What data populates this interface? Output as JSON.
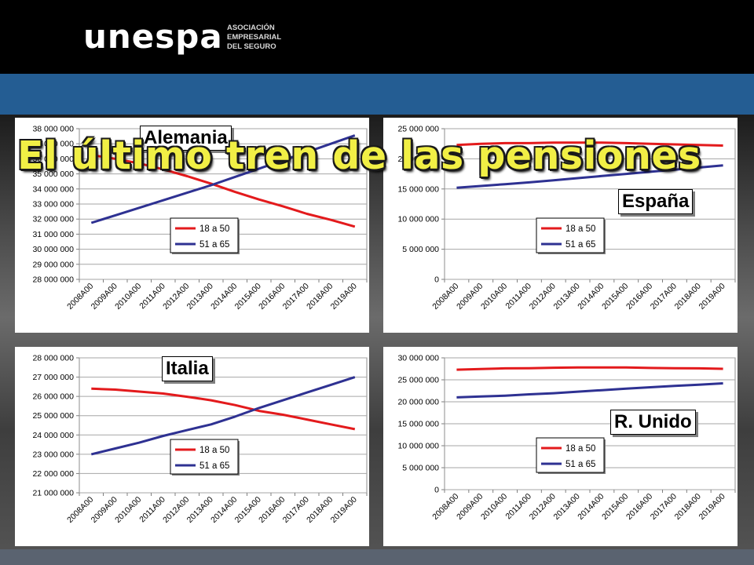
{
  "header": {
    "logo_text": "unespa",
    "logo_subtitle_lines": [
      "ASOCIACIÓN",
      "EMPRESARIAL",
      "DEL SEGURO"
    ]
  },
  "slide_title": "El último tren de las pensiones",
  "colors": {
    "series_18_50": "#e31a1c",
    "series_51_65": "#2e3192",
    "title_yellow": "#f1ef45",
    "band_blue": "#245d93"
  },
  "chart_data": [
    {
      "type": "line",
      "id": "alemania",
      "country_label": "Alemania",
      "categories": [
        "2008A00",
        "2009A00",
        "2010A00",
        "2011A00",
        "2012A00",
        "2013A00",
        "2014A00",
        "2015A00",
        "2016A00",
        "2017A00",
        "2018A00",
        "2019A00"
      ],
      "series": [
        {
          "name": "18 a 50",
          "values": [
            36250000,
            36000000,
            35700000,
            35300000,
            34850000,
            34350000,
            33800000,
            33300000,
            32850000,
            32350000,
            31950000,
            31500000
          ]
        },
        {
          "name": "51 a 65",
          "values": [
            31750000,
            32250000,
            32750000,
            33250000,
            33750000,
            34250000,
            34800000,
            35350000,
            35900000,
            36450000,
            37000000,
            37550000
          ]
        }
      ],
      "yticks": [
        "38 000 000",
        "37 000 000",
        "36 000 000",
        "35 000 000",
        "34 000 000",
        "33 000 000",
        "32 000 000",
        "31 000 000",
        "30 000 000",
        "29 000 000",
        "28 000 000"
      ],
      "ylim": [
        28000000,
        38000000
      ],
      "legend": "bottom-center"
    },
    {
      "type": "line",
      "id": "espana",
      "country_label": "España",
      "categories": [
        "2008A00",
        "2009A00",
        "2010A00",
        "2011A00",
        "2012A00",
        "2013A00",
        "2014A00",
        "2015A00",
        "2016A00",
        "2017A00",
        "2018A00",
        "2019A00"
      ],
      "series": [
        {
          "name": "18 a 50",
          "values": [
            22300000,
            22500000,
            22600000,
            22600000,
            22700000,
            22700000,
            22700000,
            22600000,
            22500000,
            22400000,
            22300000,
            22200000
          ]
        },
        {
          "name": "51 a 65",
          "values": [
            15200000,
            15500000,
            15800000,
            16100000,
            16450000,
            16800000,
            17150000,
            17500000,
            17850000,
            18200000,
            18550000,
            18900000
          ]
        }
      ],
      "yticks": [
        "25 000 000",
        "20 000 000",
        "15 000 000",
        "10 000 000",
        "5 000 000",
        "0"
      ],
      "ylim": [
        0,
        25000000
      ],
      "legend": "bottom-center"
    },
    {
      "type": "line",
      "id": "italia",
      "country_label": "Italia",
      "categories": [
        "2008A00",
        "2009A00",
        "2010A00",
        "2011A00",
        "2012A00",
        "2013A00",
        "2014A00",
        "2015A00",
        "2016A00",
        "2017A00",
        "2018A00",
        "2019A00"
      ],
      "series": [
        {
          "name": "18 a 50",
          "values": [
            26400000,
            26350000,
            26250000,
            26150000,
            25980000,
            25800000,
            25550000,
            25250000,
            25050000,
            24800000,
            24550000,
            24300000
          ]
        },
        {
          "name": "51 a 65",
          "values": [
            23000000,
            23300000,
            23600000,
            23950000,
            24250000,
            24550000,
            24950000,
            25400000,
            25800000,
            26200000,
            26600000,
            27000000
          ]
        }
      ],
      "yticks": [
        "28 000 000",
        "27 000 000",
        "26 000 000",
        "25 000 000",
        "24 000 000",
        "23 000 000",
        "22 000 000",
        "21 000 000"
      ],
      "ylim": [
        21000000,
        28000000
      ],
      "legend": "bottom-center"
    },
    {
      "type": "line",
      "id": "reino-unido",
      "country_label": "R. Unido",
      "categories": [
        "2008A00",
        "2009A00",
        "2010A00",
        "2011A00",
        "2012A00",
        "2013A00",
        "2014A00",
        "2015A00",
        "2016A00",
        "2017A00",
        "2018A00",
        "2019A00"
      ],
      "series": [
        {
          "name": "18 a 50",
          "values": [
            27300000,
            27450000,
            27600000,
            27650000,
            27750000,
            27800000,
            27800000,
            27800000,
            27700000,
            27650000,
            27600000,
            27500000
          ]
        },
        {
          "name": "51 a 65",
          "values": [
            21000000,
            21200000,
            21400000,
            21700000,
            21950000,
            22300000,
            22650000,
            23000000,
            23300000,
            23600000,
            23900000,
            24200000
          ]
        }
      ],
      "yticks": [
        "30 000 000",
        "25 000 000",
        "20 000 000",
        "15 000 000",
        "10 000 000",
        "5 000 000",
        "0"
      ],
      "ylim": [
        0,
        30000000
      ],
      "legend": "bottom-left"
    }
  ]
}
